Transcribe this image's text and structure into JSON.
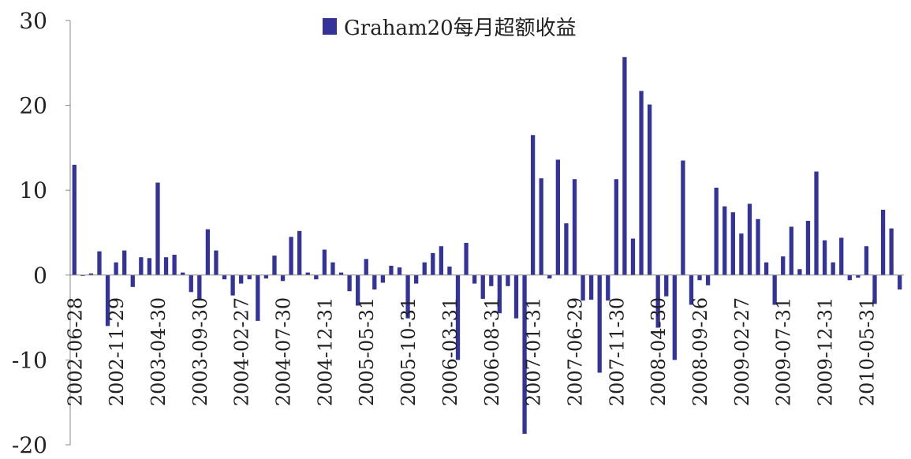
{
  "chart_data": {
    "type": "bar",
    "title": "",
    "xlabel": "",
    "ylabel": "",
    "ylim": [
      -20,
      30
    ],
    "yticks": [
      -20,
      -10,
      0,
      10,
      20,
      30
    ],
    "grid": false,
    "legend_position": "top-center",
    "colors": {
      "bar": "#333399"
    },
    "category_labels": [
      "2002-06-28",
      "2002-11-29",
      "2003-04-30",
      "2003-09-30",
      "2004-02-27",
      "2004-07-30",
      "2004-12-31",
      "2005-05-31",
      "2005-10-31",
      "2006-03-31",
      "2006-08-31",
      "2007-01-31",
      "2007-06-29",
      "2007-11-30",
      "2008-04-30",
      "2008-09-26",
      "2009-02-27",
      "2009-07-31",
      "2009-12-31",
      "2010-05-31"
    ],
    "label_every": 5,
    "series": [
      {
        "name": "Graham20每月超额收益",
        "values": [
          13.0,
          -0.1,
          0.2,
          2.8,
          -6.0,
          1.5,
          2.9,
          -1.4,
          2.1,
          2.0,
          10.9,
          2.1,
          2.4,
          0.3,
          -2.0,
          -3.0,
          5.4,
          2.9,
          -0.5,
          -2.4,
          -1.0,
          -0.5,
          -5.4,
          -0.4,
          2.3,
          -0.7,
          4.5,
          5.2,
          0.3,
          -0.5,
          3.0,
          1.5,
          0.3,
          -1.9,
          -3.6,
          1.9,
          -1.7,
          -0.9,
          1.1,
          0.9,
          -5.1,
          -1.0,
          1.5,
          2.6,
          3.4,
          1.0,
          -10.0,
          3.8,
          -1.0,
          -2.8,
          -1.3,
          -4.5,
          -1.3,
          -5.1,
          -18.7,
          16.5,
          11.4,
          -0.4,
          13.6,
          6.1,
          11.3,
          -3.0,
          -2.9,
          -11.5,
          -3.0,
          11.3,
          25.7,
          4.3,
          21.7,
          20.1,
          -6.2,
          -2.5,
          -10.0,
          13.5,
          -3.5,
          -0.6,
          -1.2,
          10.3,
          8.1,
          7.4,
          4.9,
          8.4,
          6.6,
          1.5,
          -3.5,
          2.2,
          5.7,
          0.7,
          6.4,
          12.2,
          4.1,
          1.5,
          4.4,
          -0.6,
          -0.3,
          3.4,
          -3.4,
          7.7,
          5.5,
          -1.7
        ]
      }
    ]
  }
}
